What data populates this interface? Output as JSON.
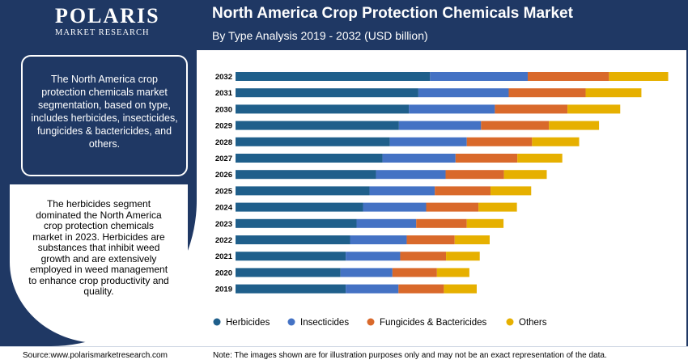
{
  "logo": {
    "main": "POLARIS",
    "sub": "MARKET RESEARCH"
  },
  "header": {
    "title": "North America Crop Protection Chemicals Market",
    "subtitle": "By Type Analysis 2019 - 2032 (USD billion)"
  },
  "sidebar": {
    "box1_text": "The North America crop protection chemicals market segmentation, based on type, includes herbicides, insecticides, fungicides & bactericides, and others.",
    "circle_text": "The herbicides segment dominated the North America crop protection chemicals market in 2023. Herbicides are substances that inhibit weed growth and are extensively employed in weed management to enhance crop productivity and quality."
  },
  "footer": {
    "source": "Source:www.polarismarketresearch.com",
    "note": "Note: The images shown are for illustration purposes only and may not be an exact representation of the data."
  },
  "chart_data": {
    "type": "bar",
    "orientation": "horizontal",
    "stacked": true,
    "categories": [
      "2032",
      "2031",
      "2030",
      "2029",
      "2028",
      "2027",
      "2026",
      "2025",
      "2024",
      "2023",
      "2022",
      "2021",
      "2020",
      "2019"
    ],
    "series": [
      {
        "name": "Herbicides",
        "color": "#1f5f8b",
        "values": [
          4.5,
          4.23,
          4.01,
          3.78,
          3.57,
          3.4,
          3.25,
          3.1,
          2.95,
          2.8,
          2.65,
          2.55,
          2.43,
          2.55
        ]
      },
      {
        "name": "Insecticides",
        "color": "#4472c4",
        "values": [
          2.26,
          2.09,
          1.99,
          1.9,
          1.78,
          1.69,
          1.61,
          1.51,
          1.46,
          1.38,
          1.31,
          1.26,
          1.2,
          1.22
        ]
      },
      {
        "name": "Fungicides & Bactericides",
        "color": "#d9692b",
        "values": [
          1.88,
          1.78,
          1.68,
          1.57,
          1.51,
          1.43,
          1.35,
          1.29,
          1.21,
          1.17,
          1.11,
          1.06,
          1.03,
          1.05
        ]
      },
      {
        "name": "Others",
        "color": "#e6b000",
        "values": [
          1.37,
          1.29,
          1.22,
          1.16,
          1.09,
          1.04,
          0.99,
          0.94,
          0.89,
          0.85,
          0.81,
          0.78,
          0.75,
          0.76
        ]
      }
    ],
    "legend_position": "bottom",
    "grid": false
  }
}
